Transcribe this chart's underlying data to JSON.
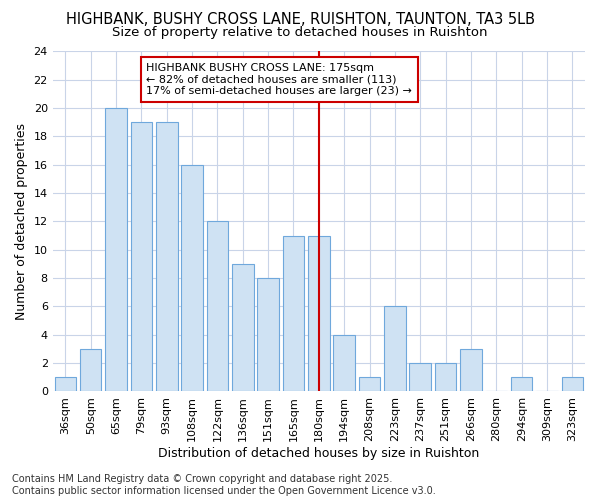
{
  "title": "HIGHBANK, BUSHY CROSS LANE, RUISHTON, TAUNTON, TA3 5LB",
  "subtitle": "Size of property relative to detached houses in Ruishton",
  "xlabel": "Distribution of detached houses by size in Ruishton",
  "ylabel": "Number of detached properties",
  "categories": [
    "36sqm",
    "50sqm",
    "65sqm",
    "79sqm",
    "93sqm",
    "108sqm",
    "122sqm",
    "136sqm",
    "151sqm",
    "165sqm",
    "180sqm",
    "194sqm",
    "208sqm",
    "223sqm",
    "237sqm",
    "251sqm",
    "266sqm",
    "280sqm",
    "294sqm",
    "309sqm",
    "323sqm"
  ],
  "values": [
    1,
    3,
    20,
    19,
    19,
    16,
    12,
    9,
    8,
    11,
    11,
    4,
    1,
    6,
    2,
    2,
    3,
    0,
    1,
    0,
    1
  ],
  "bar_color": "#cfe2f3",
  "bar_edge_color": "#6fa8dc",
  "vline_x": 10,
  "vline_color": "#cc0000",
  "annotation_text": "HIGHBANK BUSHY CROSS LANE: 175sqm\n← 82% of detached houses are smaller (113)\n17% of semi-detached houses are larger (23) →",
  "annotation_box_color": "#ffffff",
  "annotation_box_edge_color": "#cc0000",
  "ylim": [
    0,
    24
  ],
  "yticks": [
    0,
    2,
    4,
    6,
    8,
    10,
    12,
    14,
    16,
    18,
    20,
    22,
    24
  ],
  "footer_text": "Contains HM Land Registry data © Crown copyright and database right 2025.\nContains public sector information licensed under the Open Government Licence v3.0.",
  "plot_bg_color": "#ffffff",
  "fig_bg_color": "#ffffff",
  "grid_color": "#c9d4e8",
  "title_fontsize": 10.5,
  "subtitle_fontsize": 9.5,
  "tick_fontsize": 8,
  "ylabel_fontsize": 9,
  "xlabel_fontsize": 9,
  "footer_fontsize": 7,
  "annot_fontsize": 8
}
